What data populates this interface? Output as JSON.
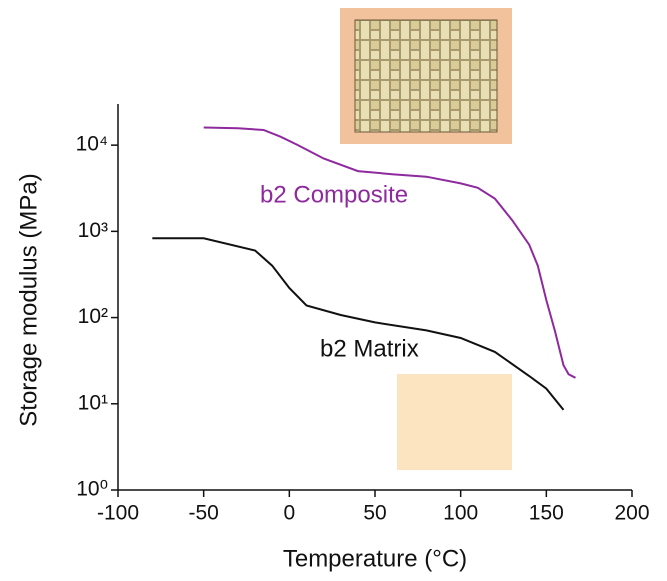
{
  "chart_data": {
    "type": "line",
    "log_scale_y": true,
    "xlabel": "Temperature (°C)",
    "ylabel": "Storage modulus (MPa)",
    "xlim": [
      -100,
      200
    ],
    "xticks": [
      -100,
      -50,
      0,
      50,
      100,
      150,
      200
    ],
    "ylim": [
      1,
      30000
    ],
    "yticks": [
      {
        "value": 1,
        "label": "10⁰"
      },
      {
        "value": 10,
        "label": "10¹"
      },
      {
        "value": 100,
        "label": "10²"
      },
      {
        "value": 1000,
        "label": "10³"
      },
      {
        "value": 10000,
        "label": "10⁴"
      }
    ],
    "series": [
      {
        "name": "b2 Composite",
        "color": "#8e2a9e",
        "x": [
          -50,
          -30,
          -15,
          -5,
          5,
          20,
          40,
          60,
          80,
          100,
          110,
          120,
          130,
          140,
          145,
          150,
          155,
          160,
          163,
          167
        ],
        "values": [
          16000,
          15700,
          15000,
          12500,
          10000,
          7000,
          5000,
          4600,
          4300,
          3600,
          3200,
          2400,
          1350,
          700,
          400,
          160,
          70,
          28,
          22,
          20
        ]
      },
      {
        "name": "b2 Matrix",
        "color": "#111111",
        "x": [
          -80,
          -50,
          -20,
          -10,
          0,
          10,
          30,
          50,
          80,
          100,
          120,
          140,
          150,
          160
        ],
        "values": [
          830,
          830,
          600,
          400,
          220,
          138,
          107,
          88,
          71,
          58,
          40,
          21,
          15,
          8.5
        ]
      }
    ]
  }
}
